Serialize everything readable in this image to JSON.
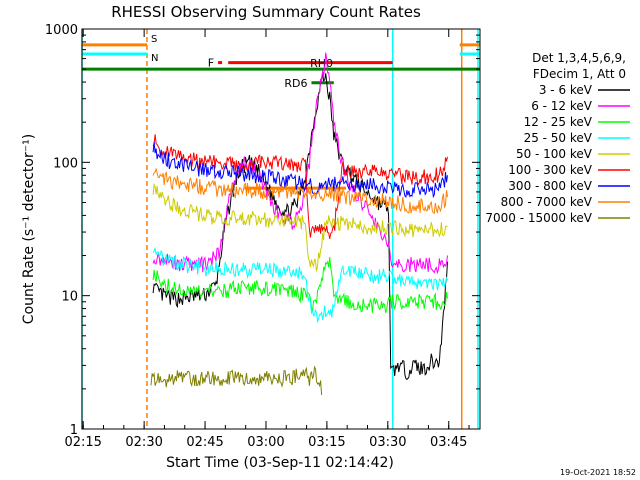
{
  "chart_data": {
    "type": "line",
    "title": "RHESSI Observing Summary Count Rates",
    "xlabel": "Start Time (03-Sep-11 02:14:42)",
    "ylabel": "Count Rate (s⁻¹ detector⁻¹)",
    "yscale": "log",
    "ylim": [
      1,
      1000
    ],
    "xlim_minutes": [
      0,
      98
    ],
    "x_ticks": [
      "02:15",
      "02:30",
      "02:45",
      "03:00",
      "03:15",
      "03:30",
      "03:45"
    ],
    "x_tick_minutes": [
      0.3,
      15.3,
      30.3,
      45.3,
      60.3,
      75.3,
      90.3
    ],
    "y_ticks": [
      "1",
      "10",
      "100",
      "1000"
    ],
    "y_tick_values": [
      1,
      10,
      100,
      1000
    ],
    "legend_header": [
      "Det 1,3,4,5,6,9,",
      "FDecim 1, Att 0"
    ],
    "legend_placement": "right",
    "footer": "19-Oct-2021 18:52",
    "series": [
      {
        "name": "3 - 6 keV",
        "color": "#000000",
        "points": [
          [
            17.5,
            12
          ],
          [
            18,
            11
          ],
          [
            20,
            10
          ],
          [
            22,
            9.5
          ],
          [
            25,
            9.5
          ],
          [
            28,
            10
          ],
          [
            30,
            10
          ],
          [
            33,
            12
          ],
          [
            35,
            30
          ],
          [
            37,
            60
          ],
          [
            39,
            90
          ],
          [
            41,
            100
          ],
          [
            43,
            90
          ],
          [
            45,
            70
          ],
          [
            47,
            55
          ],
          [
            49,
            45
          ],
          [
            51,
            42
          ],
          [
            53,
            50
          ],
          [
            55,
            80
          ],
          [
            57,
            200
          ],
          [
            59,
            420
          ],
          [
            60,
            440
          ],
          [
            61,
            300
          ],
          [
            62,
            160
          ],
          [
            64,
            100
          ],
          [
            67,
            75
          ],
          [
            70,
            60
          ],
          [
            73,
            50
          ],
          [
            75.5,
            45
          ],
          [
            76,
            2.6
          ],
          [
            78,
            3
          ],
          [
            80,
            2.7
          ],
          [
            82,
            3
          ],
          [
            84,
            2.8
          ],
          [
            86,
            3.2
          ],
          [
            88,
            3.2
          ],
          [
            89,
            7
          ],
          [
            90,
            18
          ]
        ]
      },
      {
        "name": "6 - 12 keV",
        "color": "#ff00ff",
        "points": [
          [
            17.5,
            20
          ],
          [
            19,
            19
          ],
          [
            22,
            18
          ],
          [
            25,
            17
          ],
          [
            28,
            17
          ],
          [
            31,
            17
          ],
          [
            34,
            22
          ],
          [
            36,
            50
          ],
          [
            38,
            80
          ],
          [
            40,
            100
          ],
          [
            42,
            90
          ],
          [
            44,
            75
          ],
          [
            46,
            55
          ],
          [
            48,
            42
          ],
          [
            50,
            38
          ],
          [
            52,
            35
          ],
          [
            54,
            45
          ],
          [
            56,
            100
          ],
          [
            58,
            320
          ],
          [
            60,
            600
          ],
          [
            61,
            420
          ],
          [
            62,
            200
          ],
          [
            64,
            100
          ],
          [
            66,
            65
          ],
          [
            68,
            55
          ],
          [
            70,
            45
          ],
          [
            72,
            35
          ],
          [
            74,
            30
          ],
          [
            75.5,
            25
          ],
          [
            76,
            17
          ],
          [
            80,
            17
          ],
          [
            84,
            17
          ],
          [
            88,
            17
          ],
          [
            90,
            20
          ]
        ]
      },
      {
        "name": "12 - 25 keV",
        "color": "#00ff00",
        "points": [
          [
            17.5,
            15
          ],
          [
            19,
            13
          ],
          [
            21,
            12
          ],
          [
            24,
            11
          ],
          [
            27,
            10.5
          ],
          [
            30,
            10.5
          ],
          [
            33,
            11
          ],
          [
            36,
            11
          ],
          [
            40,
            11.5
          ],
          [
            44,
            11.5
          ],
          [
            48,
            11
          ],
          [
            52,
            10.5
          ],
          [
            55,
            10
          ],
          [
            56,
            9
          ],
          [
            57,
            8.5
          ],
          [
            59,
            12
          ],
          [
            60,
            20
          ],
          [
            61,
            18
          ],
          [
            62,
            10
          ],
          [
            64,
            9
          ],
          [
            68,
            8.5
          ],
          [
            72,
            8.5
          ],
          [
            75.5,
            8.5
          ],
          [
            76,
            9
          ],
          [
            80,
            9
          ],
          [
            84,
            9
          ],
          [
            88,
            9
          ],
          [
            90,
            9.5
          ]
        ]
      },
      {
        "name": "25 - 50 keV",
        "color": "#00ffff",
        "points": [
          [
            17.5,
            24
          ],
          [
            19,
            20
          ],
          [
            22,
            18
          ],
          [
            25,
            17
          ],
          [
            30,
            16
          ],
          [
            35,
            16
          ],
          [
            40,
            15.5
          ],
          [
            45,
            15.5
          ],
          [
            50,
            15
          ],
          [
            55,
            15
          ],
          [
            56,
            9
          ],
          [
            58,
            7
          ],
          [
            60,
            7.5
          ],
          [
            62,
            8
          ],
          [
            64,
            15
          ],
          [
            68,
            15
          ],
          [
            72,
            14
          ],
          [
            75.5,
            14
          ],
          [
            76,
            14
          ],
          [
            80,
            13
          ],
          [
            84,
            12.5
          ],
          [
            88,
            12.5
          ],
          [
            90,
            13
          ]
        ]
      },
      {
        "name": "50 - 100 keV",
        "color": "#cccc00",
        "points": [
          [
            17.5,
            65
          ],
          [
            19,
            55
          ],
          [
            22,
            48
          ],
          [
            26,
            44
          ],
          [
            30,
            40
          ],
          [
            35,
            38
          ],
          [
            40,
            38
          ],
          [
            45,
            37
          ],
          [
            50,
            37
          ],
          [
            55,
            35
          ],
          [
            56,
            17
          ],
          [
            58,
            17
          ],
          [
            60,
            35
          ],
          [
            62,
            35
          ],
          [
            66,
            34
          ],
          [
            70,
            33
          ],
          [
            75.5,
            32
          ],
          [
            76,
            32
          ],
          [
            80,
            31
          ],
          [
            84,
            31
          ],
          [
            88,
            31
          ],
          [
            90,
            33
          ]
        ]
      },
      {
        "name": "100 - 300 keV",
        "color": "#ff0000",
        "points": [
          [
            17.5,
            150
          ],
          [
            19,
            130
          ],
          [
            22,
            115
          ],
          [
            26,
            105
          ],
          [
            30,
            100
          ],
          [
            35,
            98
          ],
          [
            40,
            97
          ],
          [
            45,
            100
          ],
          [
            50,
            100
          ],
          [
            55,
            95
          ],
          [
            56,
            30
          ],
          [
            60,
            30
          ],
          [
            62,
            30
          ],
          [
            64,
            90
          ],
          [
            68,
            85
          ],
          [
            72,
            85
          ],
          [
            75.5,
            82
          ],
          [
            76,
            80
          ],
          [
            80,
            78
          ],
          [
            84,
            78
          ],
          [
            88,
            80
          ],
          [
            90,
            110
          ]
        ]
      },
      {
        "name": "300 - 800 keV",
        "color": "#0000ff",
        "points": [
          [
            17.5,
            135
          ],
          [
            19,
            115
          ],
          [
            22,
            100
          ],
          [
            26,
            92
          ],
          [
            30,
            88
          ],
          [
            35,
            85
          ],
          [
            40,
            82
          ],
          [
            45,
            78
          ],
          [
            50,
            72
          ],
          [
            55,
            70
          ],
          [
            57,
            65
          ],
          [
            60,
            68
          ],
          [
            64,
            70
          ],
          [
            68,
            68
          ],
          [
            72,
            68
          ],
          [
            75.5,
            66
          ],
          [
            76,
            64
          ],
          [
            80,
            62
          ],
          [
            84,
            62
          ],
          [
            88,
            62
          ],
          [
            90,
            80
          ]
        ]
      },
      {
        "name": "800 - 7000 keV",
        "color": "#ff8000",
        "points": [
          [
            17.5,
            90
          ],
          [
            19,
            80
          ],
          [
            22,
            72
          ],
          [
            26,
            68
          ],
          [
            30,
            65
          ],
          [
            35,
            62
          ],
          [
            40,
            62
          ],
          [
            45,
            60
          ],
          [
            50,
            60
          ],
          [
            55,
            58
          ],
          [
            60,
            57
          ],
          [
            64,
            55
          ],
          [
            68,
            53
          ],
          [
            72,
            52
          ],
          [
            75.5,
            52
          ],
          [
            76,
            50
          ],
          [
            80,
            48
          ],
          [
            84,
            47
          ],
          [
            88,
            47
          ],
          [
            90,
            55
          ]
        ]
      },
      {
        "name": "7000 - 15000 keV",
        "color": "#808000",
        "points": [
          [
            17,
            2.4
          ],
          [
            17.5,
            2.4
          ],
          [
            19,
            2.4
          ],
          [
            20,
            2.2
          ],
          [
            21,
            2.4
          ],
          [
            50,
            2.4
          ],
          [
            51,
            2.6
          ],
          [
            52,
            2.4
          ],
          [
            53,
            2.6
          ],
          [
            54,
            2.4
          ],
          [
            55,
            2.6
          ],
          [
            56,
            2.4
          ],
          [
            57,
            2.6
          ],
          [
            58,
            2.4
          ],
          [
            58.5,
            2.4
          ],
          [
            59,
            1.8
          ]
        ]
      }
    ],
    "segments": [
      {
        "label": "F",
        "color": "#ff0000",
        "y": 560,
        "x_start": 33.5,
        "x_end": 34.5
      },
      {
        "label": "",
        "color": "#ff0000",
        "y": 560,
        "x_start": 36,
        "x_end": 76.5
      },
      {
        "label": "RD6",
        "color": "#008000",
        "y": 395,
        "x_start": 56.5,
        "x_end": 62
      },
      {
        "label": "RH0",
        "color": "#008000",
        "y": 500,
        "x_start": 0,
        "x_end": 98
      },
      {
        "label": "",
        "color": "#ff8000",
        "y": 760,
        "x_start": 0,
        "x_end": 16
      },
      {
        "label": "",
        "color": "#ff8000",
        "y": 760,
        "x_start": 93,
        "x_end": 98
      },
      {
        "label": "",
        "color": "#00ffff",
        "y": 650,
        "x_start": 0,
        "x_end": 16
      },
      {
        "label": "",
        "color": "#00ffff",
        "y": 650,
        "x_start": 93,
        "x_end": 98
      },
      {
        "label": "",
        "color": "#ff8000",
        "y": 64,
        "x_start": 40,
        "x_end": 65
      }
    ],
    "band_labels": [
      {
        "label": "S",
        "color": "#ff8000"
      },
      {
        "label": "N",
        "color": "#00ffff"
      }
    ],
    "verticals": [
      {
        "color": "#00ffff",
        "x": 0
      },
      {
        "color": "#ff8000",
        "x": 16
      },
      {
        "color": "#00ffff",
        "x": 76.5
      },
      {
        "color": "#ff8000",
        "x": 93.5
      },
      {
        "color": "#00ffff",
        "x": 97.5
      }
    ]
  }
}
